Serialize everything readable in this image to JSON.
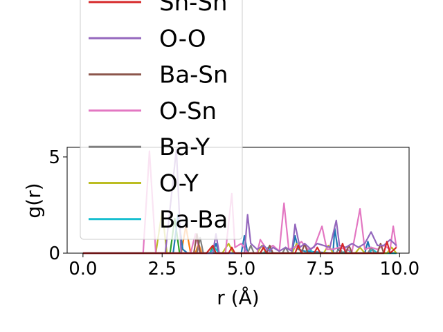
{
  "chart_data": {
    "type": "line",
    "xlabel": "r (Å)",
    "ylabel": "g(r)",
    "xlim": [
      -0.5,
      10.3
    ],
    "ylim": [
      0,
      5.5
    ],
    "xticks": [
      0.0,
      2.5,
      5.0,
      7.5,
      10.0
    ],
    "xtick_labels": [
      "0.0",
      "2.5",
      "5.0",
      "7.5",
      "10.0"
    ],
    "yticks": [
      0,
      5
    ],
    "ytick_labels": [
      "0",
      "5"
    ],
    "legend_placement": "upper-left, overflowing above the axes",
    "grid": false,
    "series": [
      {
        "name": "Sn-Sn",
        "color": "#d62728",
        "points": [
          [
            0,
            0
          ],
          [
            3.9,
            0
          ],
          [
            4.1,
            0.4
          ],
          [
            4.2,
            0
          ],
          [
            4.6,
            0
          ],
          [
            4.7,
            0.3
          ],
          [
            4.8,
            0
          ],
          [
            5.6,
            0
          ],
          [
            5.7,
            0.3
          ],
          [
            5.8,
            0
          ],
          [
            6.7,
            0
          ],
          [
            6.8,
            0.4
          ],
          [
            6.9,
            0
          ],
          [
            7.3,
            0
          ],
          [
            7.4,
            0.3
          ],
          [
            7.5,
            0
          ],
          [
            8.1,
            0
          ],
          [
            8.2,
            0.5
          ],
          [
            8.3,
            0
          ],
          [
            9.5,
            0
          ],
          [
            9.6,
            0.6
          ],
          [
            9.7,
            0
          ],
          [
            9.9,
            0.3
          ]
        ]
      },
      {
        "name": "O-O",
        "color": "#9467bd",
        "points": [
          [
            0,
            0
          ],
          [
            2.6,
            0
          ],
          [
            2.95,
            5.4
          ],
          [
            3.1,
            0
          ],
          [
            4.1,
            0
          ],
          [
            4.2,
            1.0
          ],
          [
            4.3,
            0
          ],
          [
            5.1,
            0
          ],
          [
            5.2,
            2.0
          ],
          [
            5.3,
            0.5
          ],
          [
            5.5,
            0.2
          ],
          [
            5.7,
            0.4
          ],
          [
            5.9,
            0.1
          ],
          [
            6.0,
            0.3
          ],
          [
            6.2,
            0.1
          ],
          [
            6.4,
            0.3
          ],
          [
            6.6,
            0.1
          ],
          [
            6.7,
            1.5
          ],
          [
            6.85,
            0.3
          ],
          [
            7.0,
            0.5
          ],
          [
            7.2,
            0.2
          ],
          [
            7.4,
            0.5
          ],
          [
            7.6,
            0.4
          ],
          [
            7.8,
            0.3
          ],
          [
            8.0,
            1.7
          ],
          [
            8.1,
            0.4
          ],
          [
            8.3,
            0.3
          ],
          [
            8.5,
            0.5
          ],
          [
            8.7,
            0.3
          ],
          [
            8.9,
            0.5
          ],
          [
            9.1,
            1.1
          ],
          [
            9.3,
            0.4
          ],
          [
            9.5,
            0.4
          ],
          [
            9.7,
            0.7
          ],
          [
            9.9,
            0.4
          ]
        ]
      },
      {
        "name": "Ba-Sn",
        "color": "#8c564b",
        "points": [
          [
            0,
            0
          ],
          [
            3.5,
            0
          ],
          [
            3.6,
            1.0
          ],
          [
            3.7,
            0
          ],
          [
            5.8,
            0
          ],
          [
            5.9,
            0.4
          ],
          [
            6.0,
            0
          ],
          [
            6.9,
            0
          ],
          [
            7.0,
            0.5
          ],
          [
            7.1,
            0
          ],
          [
            8.3,
            0
          ],
          [
            8.4,
            0.4
          ],
          [
            8.5,
            0
          ],
          [
            9.3,
            0
          ],
          [
            9.4,
            0.5
          ],
          [
            9.5,
            0
          ]
        ]
      },
      {
        "name": "O-Sn",
        "color": "#e377c2",
        "points": [
          [
            0,
            0
          ],
          [
            1.9,
            0
          ],
          [
            2.1,
            5.3
          ],
          [
            2.3,
            0
          ],
          [
            3.4,
            0
          ],
          [
            3.55,
            1.0
          ],
          [
            3.7,
            0
          ],
          [
            4.5,
            0
          ],
          [
            4.7,
            3.1
          ],
          [
            4.8,
            0.3
          ],
          [
            5.0,
            0.5
          ],
          [
            5.2,
            0
          ],
          [
            5.5,
            0
          ],
          [
            5.6,
            0.7
          ],
          [
            5.8,
            0.2
          ],
          [
            6.0,
            0.4
          ],
          [
            6.2,
            0.1
          ],
          [
            6.35,
            2.6
          ],
          [
            6.5,
            0.2
          ],
          [
            6.7,
            0.3
          ],
          [
            6.9,
            0.6
          ],
          [
            7.1,
            0.2
          ],
          [
            7.3,
            0.3
          ],
          [
            7.55,
            1.4
          ],
          [
            7.7,
            0.2
          ],
          [
            7.9,
            0.2
          ],
          [
            8.1,
            0.3
          ],
          [
            8.3,
            0.2
          ],
          [
            8.5,
            0.1
          ],
          [
            8.75,
            2.3
          ],
          [
            8.9,
            0.2
          ],
          [
            9.1,
            0.3
          ],
          [
            9.3,
            0.2
          ],
          [
            9.5,
            0.4
          ],
          [
            9.7,
            0.2
          ],
          [
            9.8,
            1.4
          ],
          [
            9.9,
            0.3
          ]
        ]
      },
      {
        "name": "Ba-Y",
        "color": "#7f7f7f",
        "points": [
          [
            0,
            0
          ],
          [
            3.6,
            0
          ],
          [
            3.7,
            0.8
          ],
          [
            3.8,
            0
          ],
          [
            5.2,
            0
          ],
          [
            5.3,
            0.4
          ],
          [
            5.4,
            0
          ],
          [
            6.3,
            0
          ],
          [
            6.4,
            0.3
          ],
          [
            6.5,
            0
          ],
          [
            8.0,
            0
          ],
          [
            8.1,
            0.3
          ],
          [
            8.2,
            0
          ],
          [
            9.0,
            0
          ],
          [
            9.1,
            0.3
          ],
          [
            9.2,
            0
          ]
        ]
      },
      {
        "name": "O-Y",
        "color": "#bcbd22",
        "points": [
          [
            0,
            0
          ],
          [
            2.3,
            0
          ],
          [
            2.5,
            2.2
          ],
          [
            2.65,
            0
          ],
          [
            4.4,
            0
          ],
          [
            4.6,
            0.5
          ],
          [
            4.75,
            0
          ],
          [
            5.5,
            0
          ],
          [
            5.65,
            0.4
          ],
          [
            5.8,
            0
          ],
          [
            6.6,
            0
          ],
          [
            6.75,
            0.5
          ],
          [
            6.9,
            0
          ],
          [
            7.6,
            0
          ],
          [
            7.75,
            0.4
          ],
          [
            7.9,
            0
          ],
          [
            8.6,
            0
          ],
          [
            8.75,
            0.3
          ],
          [
            8.9,
            0
          ],
          [
            9.6,
            0
          ],
          [
            9.75,
            0.3
          ],
          [
            9.9,
            0
          ]
        ]
      },
      {
        "name": "Ba-Ba",
        "color": "#17becf",
        "points": [
          [
            0,
            0
          ],
          [
            4.0,
            0
          ],
          [
            4.15,
            0.3
          ],
          [
            4.3,
            0
          ],
          [
            5.7,
            0
          ],
          [
            5.85,
            0.3
          ],
          [
            6.0,
            0
          ],
          [
            7.0,
            0
          ],
          [
            7.15,
            0.2
          ],
          [
            7.3,
            0
          ],
          [
            8.2,
            0
          ],
          [
            8.35,
            0.2
          ],
          [
            8.5,
            0
          ],
          [
            9.0,
            0
          ],
          [
            9.15,
            0.2
          ],
          [
            9.3,
            0
          ],
          [
            9.9,
            0
          ]
        ]
      },
      {
        "name": "",
        "color": "#1f77b4",
        "points": [
          [
            0,
            0
          ],
          [
            2.85,
            0
          ],
          [
            3.0,
            2.0
          ],
          [
            3.15,
            0.2
          ],
          [
            3.3,
            0
          ],
          [
            4.1,
            0
          ],
          [
            4.2,
            0.5
          ],
          [
            4.3,
            0
          ],
          [
            5.0,
            0
          ],
          [
            5.1,
            0.9
          ],
          [
            5.2,
            0
          ],
          [
            6.6,
            0
          ],
          [
            6.7,
            0.9
          ],
          [
            6.8,
            0.2
          ],
          [
            7.0,
            0.1
          ],
          [
            7.9,
            0
          ],
          [
            7.95,
            1.3
          ],
          [
            8.05,
            0.2
          ],
          [
            8.2,
            0
          ],
          [
            8.9,
            0
          ],
          [
            9.0,
            0.6
          ],
          [
            9.1,
            0
          ],
          [
            9.9,
            0
          ]
        ]
      },
      {
        "name": "",
        "color": "#ff7f0e",
        "points": [
          [
            0,
            0
          ],
          [
            3.1,
            0
          ],
          [
            3.25,
            1.4
          ],
          [
            3.4,
            0
          ],
          [
            3.55,
            0
          ],
          [
            3.65,
            0.5
          ],
          [
            3.75,
            0
          ],
          [
            9.9,
            0
          ]
        ]
      },
      {
        "name": "",
        "color": "#2ca02c",
        "points": [
          [
            0,
            0
          ],
          [
            2.75,
            0
          ],
          [
            2.9,
            1.8
          ],
          [
            3.05,
            0
          ],
          [
            4.0,
            0
          ],
          [
            4.1,
            0.3
          ],
          [
            4.2,
            0
          ],
          [
            5.6,
            0
          ],
          [
            5.7,
            0.3
          ],
          [
            5.8,
            0
          ],
          [
            9.9,
            0
          ]
        ]
      }
    ]
  }
}
